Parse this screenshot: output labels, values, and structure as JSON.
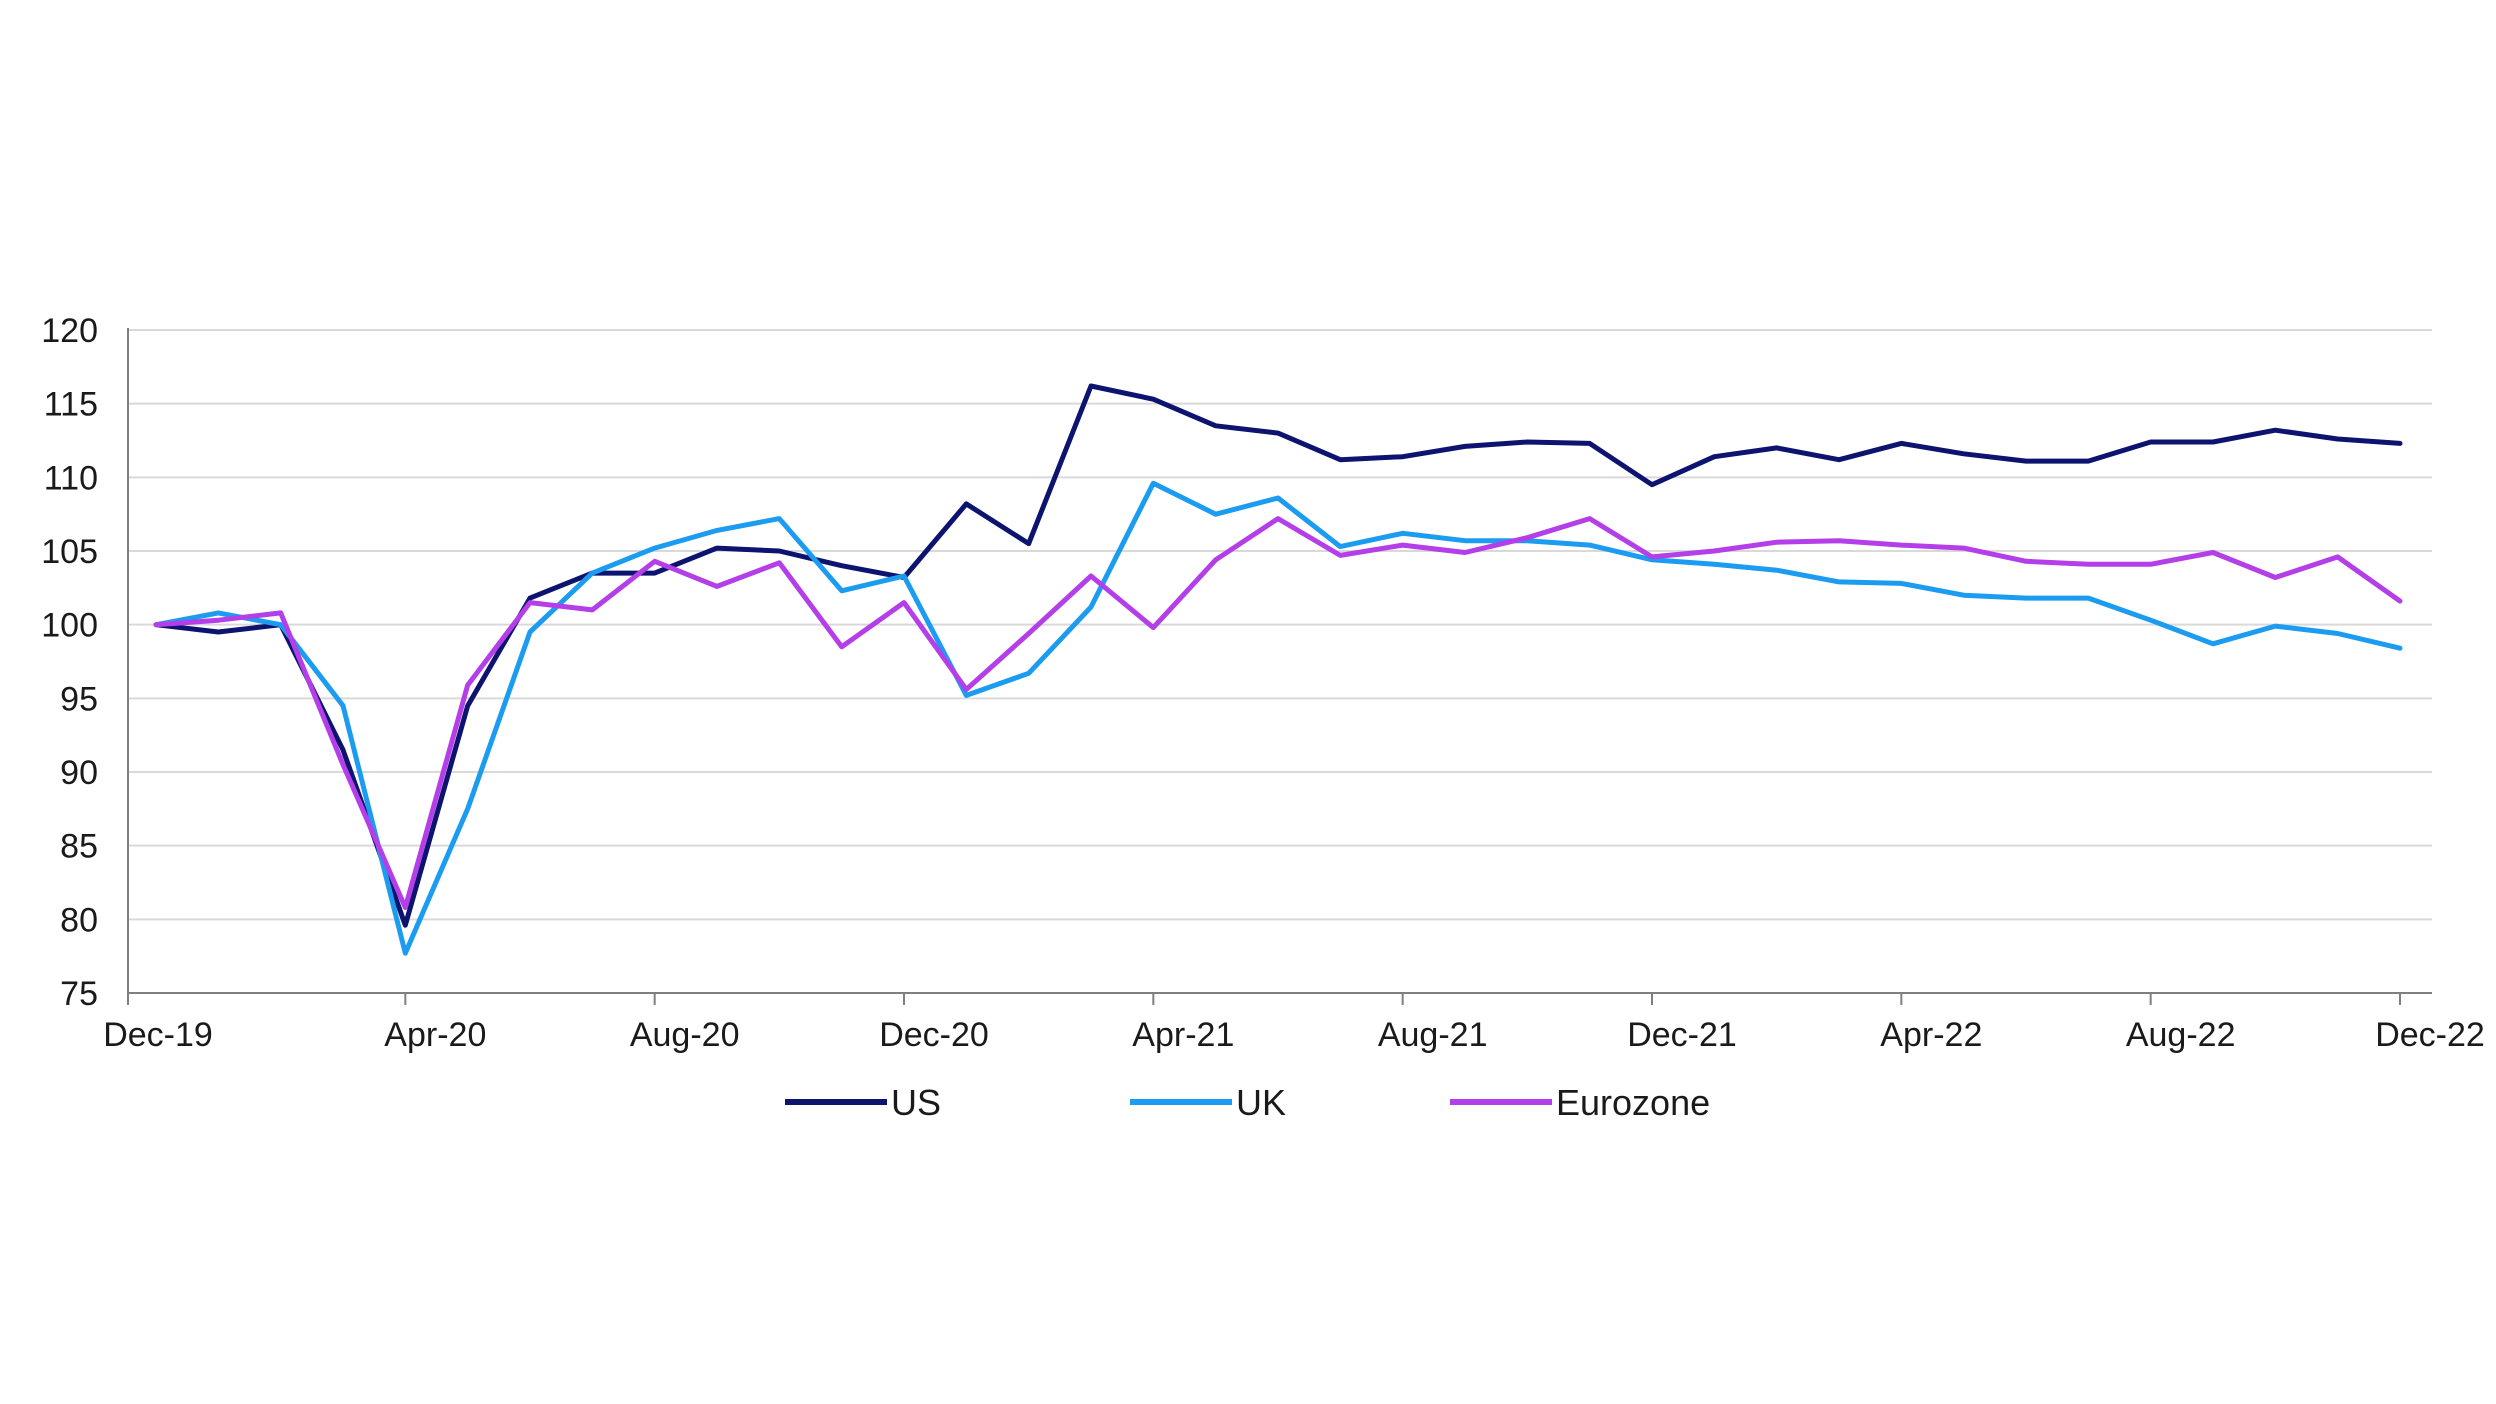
{
  "chart_data": {
    "type": "line",
    "title": "",
    "xlabel": "",
    "ylabel": "",
    "ylim": [
      75,
      120
    ],
    "yticks": [
      75,
      80,
      85,
      90,
      95,
      100,
      105,
      110,
      115,
      120
    ],
    "grid": true,
    "legend_position": "bottom",
    "x": [
      "Dec-19",
      "Jan-20",
      "Feb-20",
      "Mar-20",
      "Apr-20",
      "May-20",
      "Jun-20",
      "Jul-20",
      "Aug-20",
      "Sep-20",
      "Oct-20",
      "Nov-20",
      "Dec-20",
      "Jan-21",
      "Feb-21",
      "Mar-21",
      "Apr-21",
      "May-21",
      "Jun-21",
      "Jul-21",
      "Aug-21",
      "Sep-21",
      "Oct-21",
      "Nov-21",
      "Dec-21",
      "Jan-22",
      "Feb-22",
      "Mar-22",
      "Apr-22",
      "May-22",
      "Jun-22",
      "Jul-22",
      "Aug-22",
      "Sep-22",
      "Oct-22",
      "Nov-22",
      "Dec-22"
    ],
    "xtick_labels": [
      "Dec-19",
      "Apr-20",
      "Aug-20",
      "Dec-20",
      "Apr-21",
      "Aug-21",
      "Dec-21",
      "Apr-22",
      "Aug-22",
      "Dec-22"
    ],
    "series": [
      {
        "name": "US",
        "color": "#0d1470",
        "values": [
          100.0,
          99.5,
          100.0,
          91.5,
          79.6,
          94.5,
          101.8,
          103.5,
          103.5,
          105.2,
          105.0,
          104.0,
          103.2,
          108.2,
          105.5,
          116.2,
          115.3,
          113.5,
          113.0,
          111.2,
          111.4,
          112.1,
          112.4,
          112.3,
          109.5,
          111.4,
          112.0,
          111.2,
          112.3,
          111.6,
          111.1,
          111.1,
          112.4,
          112.4,
          113.2,
          112.6,
          112.3
        ]
      },
      {
        "name": "UK",
        "color": "#1c9cf0",
        "values": [
          100.0,
          100.8,
          100.0,
          94.5,
          77.7,
          87.5,
          99.5,
          103.5,
          105.2,
          106.4,
          107.2,
          102.3,
          103.3,
          95.2,
          96.7,
          101.2,
          109.6,
          107.5,
          108.6,
          105.3,
          106.2,
          105.7,
          105.7,
          105.4,
          104.4,
          104.1,
          103.7,
          102.9,
          102.8,
          102.0,
          101.8,
          101.8,
          100.3,
          98.7,
          99.9,
          99.4,
          98.4
        ]
      },
      {
        "name": "Eurozone",
        "color": "#b43ee8",
        "values": [
          100.0,
          100.3,
          100.8,
          90.5,
          80.8,
          95.9,
          101.5,
          101.0,
          104.3,
          102.6,
          104.2,
          98.5,
          101.5,
          95.6,
          99.4,
          103.3,
          99.8,
          104.4,
          107.2,
          104.7,
          105.4,
          104.9,
          105.9,
          107.2,
          104.6,
          105.0,
          105.6,
          105.7,
          105.4,
          105.2,
          104.3,
          104.1,
          104.1,
          104.9,
          103.2,
          104.6,
          101.6
        ]
      }
    ]
  }
}
